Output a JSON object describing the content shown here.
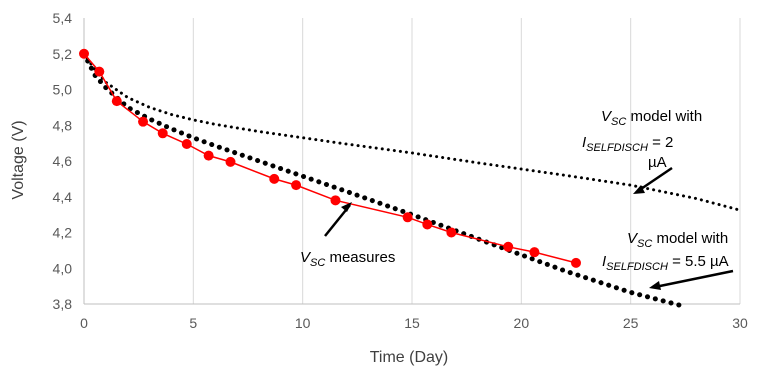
{
  "chart_data": {
    "type": "line",
    "xlabel": "Time (Day)",
    "ylabel": "Voltage (V)",
    "xlim": [
      0,
      30
    ],
    "ylim": [
      3.8,
      5.4
    ],
    "x_ticks": [
      "0",
      "5",
      "10",
      "15",
      "20",
      "25",
      "30"
    ],
    "y_ticks": [
      "3,8",
      "4,0",
      "4,2",
      "4,4",
      "4,6",
      "4,8",
      "5,0",
      "5,2",
      "5,4"
    ],
    "grid": "vertical",
    "series": [
      {
        "name": "VSC measures",
        "style": "solid red line with markers",
        "color": "#ff0000",
        "x": [
          0,
          0.7,
          1.5,
          2.7,
          3.6,
          4.7,
          5.7,
          6.7,
          8.7,
          9.7,
          11.5,
          14.8,
          15.7,
          16.8,
          19.4,
          20.6,
          22.5
        ],
        "y": [
          5.2,
          5.1,
          4.935,
          4.82,
          4.755,
          4.695,
          4.63,
          4.595,
          4.5,
          4.465,
          4.38,
          4.285,
          4.245,
          4.2,
          4.12,
          4.09,
          4.03
        ]
      },
      {
        "name": "VSC model with ISELFDISCH = 2 µA",
        "style": "small dotted black",
        "color": "#000000",
        "x": [
          0,
          0.5,
          1,
          2,
          3,
          4,
          5,
          6,
          8,
          10,
          12,
          15,
          18,
          20,
          22,
          25,
          28,
          30
        ],
        "y": [
          5.2,
          5.11,
          5.04,
          4.955,
          4.9,
          4.86,
          4.83,
          4.805,
          4.765,
          4.73,
          4.695,
          4.645,
          4.59,
          4.555,
          4.52,
          4.465,
          4.39,
          4.325
        ]
      },
      {
        "name": "VSC model with ISELFDISCH = 5.5 µA",
        "style": "large dotted black",
        "color": "#000000",
        "x": [
          0,
          0.5,
          1,
          2,
          3,
          4,
          5,
          6,
          8,
          10,
          12,
          15,
          18,
          20,
          22,
          25,
          27.5
        ],
        "y": [
          5.2,
          5.08,
          5.01,
          4.9,
          4.835,
          4.78,
          4.73,
          4.685,
          4.6,
          4.515,
          4.43,
          4.3,
          4.165,
          4.075,
          3.985,
          3.865,
          3.785
        ]
      }
    ],
    "annotations": {
      "measures": {
        "main": "V",
        "sub": "SC",
        "rest": " measures"
      },
      "model2": {
        "line1_main": "V",
        "line1_sub": "SC",
        "line1_rest": "  model with",
        "line2_main": "I",
        "line2_sub": "SELFDISCH",
        "line2_rest": " = 2",
        "line3": "µA"
      },
      "model55": {
        "line1_main": "V",
        "line1_sub": "SC",
        "line1_rest": " model with",
        "line2_main": "I",
        "line2_sub": "SELFDISCH",
        "line2_rest": " = 5.5 µA"
      }
    }
  }
}
